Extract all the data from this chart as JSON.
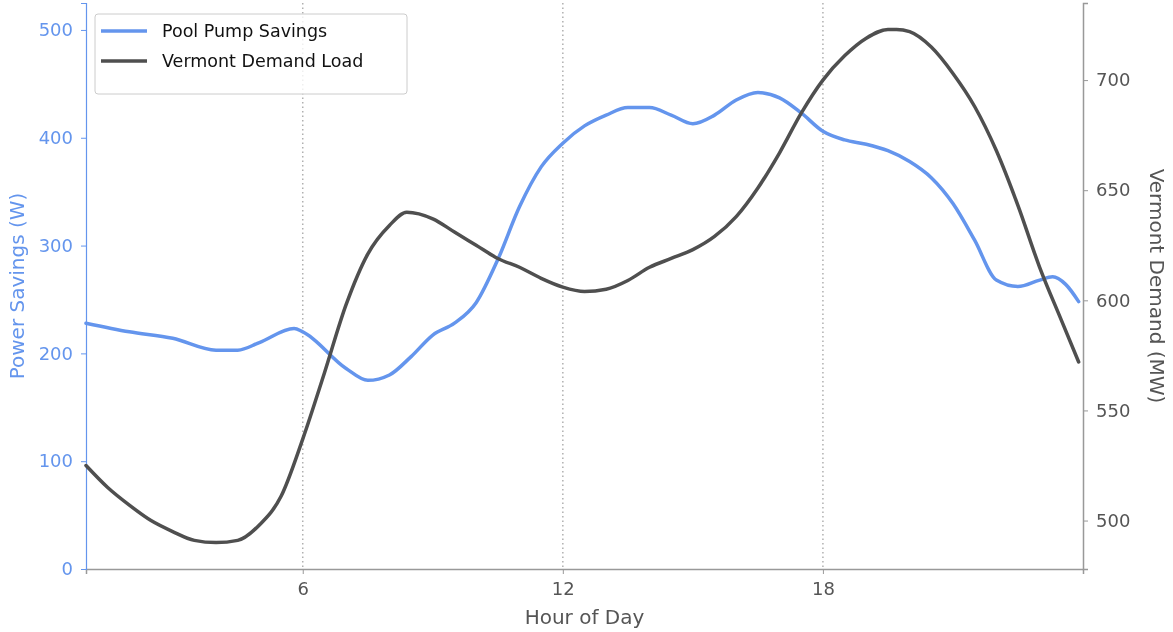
{
  "chart_data": {
    "type": "line",
    "xlabel": "Hour of Day",
    "ylabel": "Power Savings (W)",
    "y2label": "Vermont Demand (MW)",
    "xlim": [
      1,
      24
    ],
    "xticks": [
      6,
      12,
      18
    ],
    "ylim": [
      0,
      525
    ],
    "yticks": [
      0,
      100,
      200,
      300,
      400,
      500
    ],
    "y2lim": [
      478,
      735
    ],
    "y2ticks": [
      500,
      550,
      600,
      650,
      700
    ],
    "grid": "x",
    "legend": "top left",
    "line_style": "solid",
    "series": [
      {
        "name": "Pool Pump Savings",
        "color": "#6495ed",
        "x": [
          1,
          2,
          3,
          4,
          4.5,
          5,
          5.8,
          6,
          7,
          7.5,
          8,
          8.5,
          9,
          9.5,
          10,
          10.5,
          11,
          11.5,
          12,
          12.5,
          13,
          13.5,
          14,
          14.5,
          15,
          15.5,
          16,
          16.5,
          17,
          17.5,
          18,
          18.5,
          19,
          19.5,
          20,
          20.5,
          21,
          21.5,
          22,
          22.5,
          23,
          23.3,
          23.6,
          23.9
        ],
        "values": [
          228,
          220,
          214,
          203,
          203,
          210,
          223,
          220,
          186,
          175,
          180,
          197,
          217,
          228,
          247,
          287,
          336,
          373,
          395,
          411,
          421,
          428,
          428,
          421,
          413,
          421,
          435,
          442,
          437,
          423,
          406,
          398,
          394,
          388,
          378,
          363,
          339,
          305,
          268,
          262,
          268,
          271,
          264,
          248
        ]
      },
      {
        "name": "Vermont Demand Load",
        "color": "#4f4f4f",
        "axis": "y2",
        "x": [
          1,
          1.5,
          2,
          2.5,
          3,
          3.5,
          4,
          4.5,
          5,
          5.5,
          6,
          6.5,
          7,
          7.5,
          8,
          8.4,
          9,
          9.5,
          10,
          10.5,
          11,
          11.5,
          12,
          12.5,
          13,
          13.5,
          14,
          14.5,
          15,
          15.5,
          16,
          16.5,
          17,
          17.5,
          18,
          18.5,
          19,
          19.5,
          19.7,
          20,
          20.5,
          21,
          21.5,
          22,
          22.5,
          23,
          23.5,
          23.9
        ],
        "values": [
          525,
          515,
          507,
          500,
          495,
          491,
          490,
          491,
          498,
          511,
          537,
          567,
          598,
          621,
          634,
          640,
          637,
          631,
          625,
          619,
          615,
          610,
          606,
          604,
          605,
          609,
          615,
          619,
          623,
          629,
          638,
          651,
          667,
          685,
          700,
          711,
          719,
          723,
          723,
          722,
          715,
          703,
          688,
          668,
          643,
          615,
          591,
          572
        ]
      }
    ]
  }
}
